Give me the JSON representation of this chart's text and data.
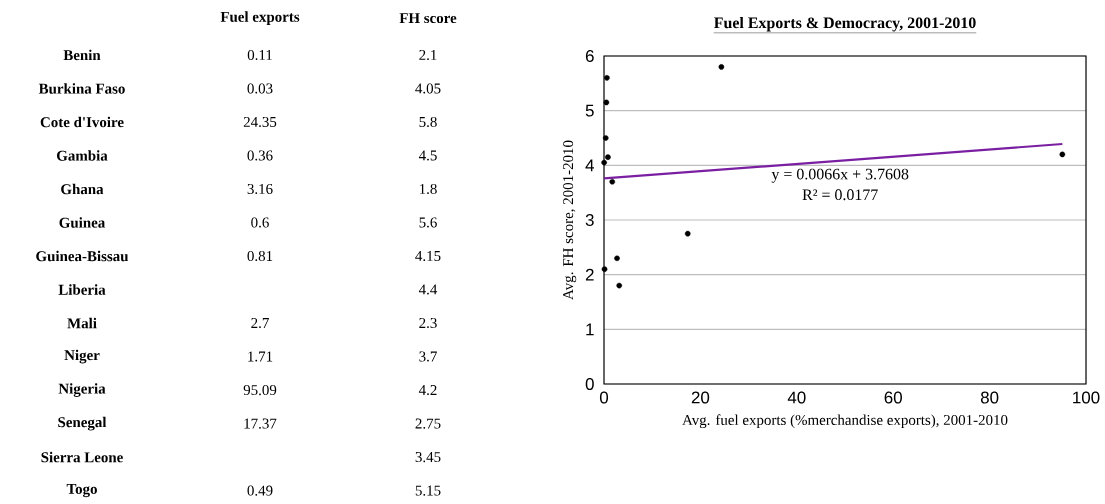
{
  "chart_data": [
    {
      "type": "other",
      "categories": [
        "Benin",
        "Burkina Faso",
        "Cote d'Ivoire",
        "Gambia",
        "Ghana",
        "Guinea",
        "Guinea-Bissau",
        "Liberia",
        "Mali",
        "Niger",
        "Nigeria",
        "Senegal",
        "Sierra Leone",
        "Togo"
      ],
      "series": [
        {
          "name": "Fuel exports",
          "values": [
            0.11,
            0.03,
            24.35,
            0.36,
            3.16,
            0.6,
            0.81,
            null,
            2.7,
            1.71,
            95.09,
            17.37,
            null,
            0.49
          ]
        },
        {
          "name": "FH score",
          "values": [
            2.1,
            4.05,
            5.8,
            4.5,
            1.8,
            5.6,
            4.15,
            4.4,
            2.3,
            3.7,
            4.2,
            2.75,
            3.45,
            5.15
          ]
        }
      ],
      "data_labels": true
    },
    {
      "type": "scatter",
      "title": "Fuel Exports & Democracy, 2001-2010",
      "xlabel": "Avg. fuel exports (%merchandise exports), 2001-2010",
      "ylabel": "Avg. FH score, 2001-2010",
      "series": [
        {
          "color": "#000000",
          "x": [
            0.11,
            0.03,
            24.35,
            0.36,
            3.16,
            0.6,
            0.81,
            2.7,
            1.71,
            95.09,
            17.37,
            0.49
          ],
          "values": [
            2.1,
            4.05,
            5.8,
            4.5,
            1.8,
            5.6,
            4.15,
            2.3,
            3.7,
            4.2,
            2.75,
            5.15
          ]
        },
        {
          "type": "line",
          "color": "#7a1fa2",
          "marker": "none",
          "x": [
            0,
            95.09
          ],
          "values": [
            3.76,
            4.39
          ]
        }
      ],
      "marker": "circle",
      "xlim": [
        0,
        100
      ],
      "ylim": [
        0,
        6
      ],
      "xticks": [
        0,
        20,
        40,
        60,
        80,
        100
      ],
      "yticks": [
        0,
        1,
        2,
        3,
        4,
        5,
        6
      ],
      "grid": "y",
      "annotations": [
        "y = 0.0066x + 3.7608",
        "R² = 0.0177"
      ]
    }
  ]
}
